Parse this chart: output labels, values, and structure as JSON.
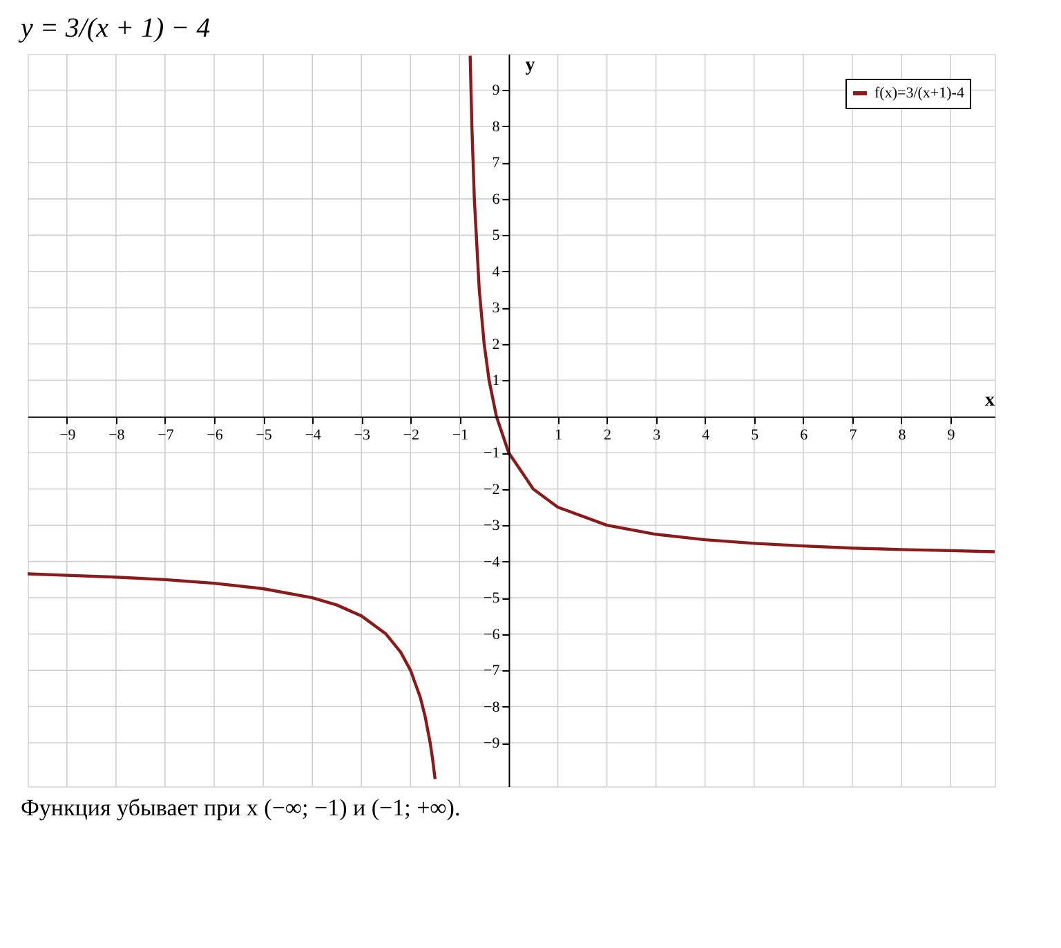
{
  "chart_data": {
    "type": "line",
    "title": "y = 3/(x + 1) − 4",
    "xlabel": "x",
    "ylabel": "y",
    "annotations": [
      "Функция убывает при x (−∞; −1) и (−1; +∞)."
    ],
    "xlim": [
      -9.8,
      9.9
    ],
    "ylim": [
      -10.2,
      10
    ],
    "xticks": [
      -9,
      -8,
      -7,
      -6,
      -5,
      -4,
      -3,
      -2,
      -1,
      1,
      2,
      3,
      4,
      5,
      6,
      7,
      8,
      9
    ],
    "yticks": [
      -9,
      -8,
      -7,
      -6,
      -5,
      -4,
      -3,
      -2,
      -1,
      1,
      2,
      3,
      4,
      5,
      6,
      7,
      8,
      9
    ],
    "grid": true,
    "legend": "top right",
    "marker": "none",
    "line_style": "solid",
    "series": [
      {
        "name": "f(x)=3/(x+1)-4",
        "color": "#8b1a1a",
        "x": [
          -9.8,
          -9,
          -8,
          -7,
          -6,
          -5,
          -4,
          -3.5,
          -3,
          -2.5,
          -2.2,
          -2,
          -1.8,
          -1.7,
          -1.6,
          -1.55,
          -1.5,
          -1,
          -0.785,
          -0.75,
          -0.7,
          -0.6,
          -0.5,
          -0.4,
          -0.25,
          0,
          0.5,
          1,
          2,
          3,
          4,
          5,
          6,
          7,
          8,
          9,
          9.9
        ],
        "values": [
          -4.34,
          -4.38,
          -4.43,
          -4.5,
          -4.6,
          -4.75,
          -5,
          -5.2,
          -5.5,
          -6,
          -6.5,
          -7,
          -7.75,
          -8.29,
          -9,
          -9.45,
          -10,
          null,
          9.95,
          8,
          6,
          3.5,
          2,
          1,
          0,
          -1,
          -2,
          -2.5,
          -3,
          -3.25,
          -3.4,
          -3.5,
          -3.57,
          -3.63,
          -3.67,
          -3.7,
          -3.73
        ]
      }
    ]
  }
}
